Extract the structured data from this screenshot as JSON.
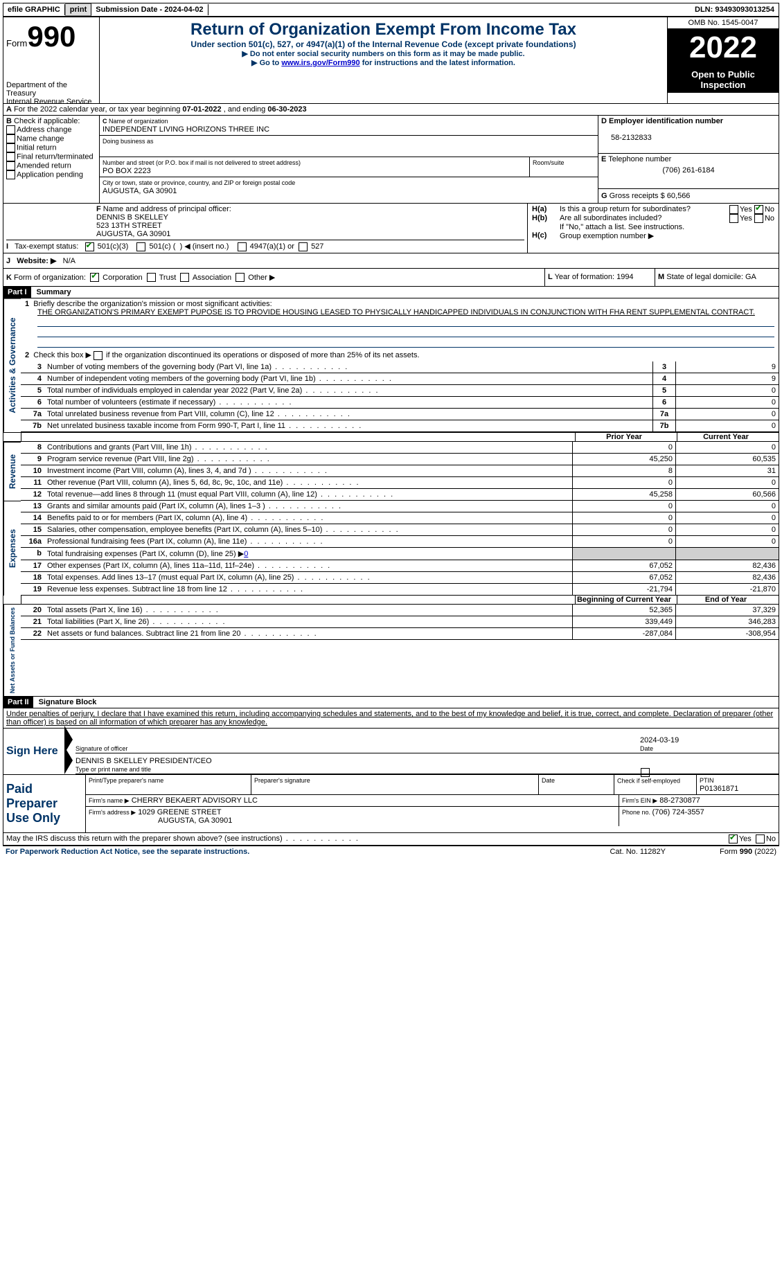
{
  "topbar": {
    "efile": "efile GRAPHIC",
    "print": "print",
    "sub_label": "Submission Date - ",
    "sub_date": "2024-04-02",
    "dln_label": "DLN: ",
    "dln": "93493093013254"
  },
  "header": {
    "form_word": "Form",
    "form_num": "990",
    "dept": "Department of the Treasury",
    "irs": "Internal Revenue Service",
    "title": "Return of Organization Exempt From Income Tax",
    "subtitle": "Under section 501(c), 527, or 4947(a)(1) of the Internal Revenue Code (except private foundations)",
    "instr1_pre": "▶ Do not enter social security numbers on this form as it may be made public.",
    "instr2_pre": "▶ Go to ",
    "instr2_link": "www.irs.gov/Form990",
    "instr2_post": " for instructions and the latest information.",
    "omb": "OMB No. 1545-0047",
    "year": "2022",
    "inspect": "Open to Public Inspection"
  },
  "period": {
    "line_a_pre": "For the 2022 calendar year, or tax year beginning ",
    "begin": "07-01-2022",
    "mid": " , and ending ",
    "end": "06-30-2023"
  },
  "boxB": {
    "label": "Check if applicable:",
    "items": [
      "Address change",
      "Name change",
      "Initial return",
      "Final return/terminated",
      "Amended return",
      "Application pending"
    ]
  },
  "boxC": {
    "name_label": "Name of organization",
    "name": "INDEPENDENT LIVING HORIZONS THREE INC",
    "dba_label": "Doing business as",
    "addr_label": "Number and street (or P.O. box if mail is not delivered to street address)",
    "room_label": "Room/suite",
    "addr": "PO BOX 2223",
    "city_label": "City or town, state or province, country, and ZIP or foreign postal code",
    "city": "AUGUSTA, GA  30901"
  },
  "boxD": {
    "label": "Employer identification number",
    "val": "58-2132833"
  },
  "boxE": {
    "label": "Telephone number",
    "val": "(706) 261-6184"
  },
  "boxG": {
    "label": "Gross receipts $",
    "val": "60,566"
  },
  "boxF": {
    "label": "Name and address of principal officer:",
    "name": "DENNIS B SKELLEY",
    "addr1": "523 13TH STREET",
    "addr2": "AUGUSTA, GA  30901"
  },
  "boxH": {
    "a": "Is this a group return for subordinates?",
    "b": "Are all subordinates included?",
    "note": "If \"No,\" attach a list. See instructions.",
    "c_label": "Group exemption number ▶"
  },
  "taxexempt": {
    "label": "Tax-exempt status:",
    "c3": "501(c)(3)",
    "c_other_pre": "501(c) (",
    "c_other_post": ") ◀ (insert no.)",
    "a1": "4947(a)(1) or",
    "s527": "527"
  },
  "website": {
    "label": "Website: ▶",
    "val": "N/A"
  },
  "boxK": {
    "label": "Form of organization:",
    "items": [
      "Corporation",
      "Trust",
      "Association",
      "Other ▶"
    ]
  },
  "boxL": {
    "label": "Year of formation: ",
    "val": "1994"
  },
  "boxM": {
    "label": "State of legal domicile: ",
    "val": "GA"
  },
  "part1": {
    "header": "Part I",
    "title": "Summary",
    "sections": {
      "gov": "Activities & Governance",
      "rev": "Revenue",
      "exp": "Expenses",
      "net": "Net Assets or Fund Balances"
    },
    "mission_label": "Briefly describe the organization's mission or most significant activities:",
    "mission": "THE ORGANIZATION'S PRIMARY EXEMPT PUPOSE IS TO PROVIDE HOUSING LEASED TO PHYSICALLY HANDICAPPED INDIVIDUALS IN CONJUNCTION WITH FHA RENT SUPPLEMENTAL CONTRACT.",
    "line2": "Check this box ▶",
    "line2_post": "if the organization discontinued its operations or disposed of more than 25% of its net assets.",
    "govlines": [
      {
        "n": "3",
        "txt": "Number of voting members of the governing body (Part VI, line 1a)",
        "val": "9"
      },
      {
        "n": "4",
        "txt": "Number of independent voting members of the governing body (Part VI, line 1b)",
        "val": "9"
      },
      {
        "n": "5",
        "txt": "Total number of individuals employed in calendar year 2022 (Part V, line 2a)",
        "val": "0"
      },
      {
        "n": "6",
        "txt": "Total number of volunteers (estimate if necessary)",
        "val": "0"
      },
      {
        "n": "7a",
        "txt": "Total unrelated business revenue from Part VIII, column (C), line 12",
        "val": "0"
      },
      {
        "n": "7b",
        "txt": "Net unrelated business taxable income from Form 990-T, Part I, line 11",
        "val": "0"
      }
    ],
    "colhdr_prior": "Prior Year",
    "colhdr_curr": "Current Year",
    "revlines": [
      {
        "n": "8",
        "txt": "Contributions and grants (Part VIII, line 1h)",
        "prior": "0",
        "curr": "0"
      },
      {
        "n": "9",
        "txt": "Program service revenue (Part VIII, line 2g)",
        "prior": "45,250",
        "curr": "60,535"
      },
      {
        "n": "10",
        "txt": "Investment income (Part VIII, column (A), lines 3, 4, and 7d )",
        "prior": "8",
        "curr": "31"
      },
      {
        "n": "11",
        "txt": "Other revenue (Part VIII, column (A), lines 5, 6d, 8c, 9c, 10c, and 11e)",
        "prior": "0",
        "curr": "0"
      },
      {
        "n": "12",
        "txt": "Total revenue—add lines 8 through 11 (must equal Part VIII, column (A), line 12)",
        "prior": "45,258",
        "curr": "60,566"
      }
    ],
    "explines": [
      {
        "n": "13",
        "txt": "Grants and similar amounts paid (Part IX, column (A), lines 1–3 )",
        "prior": "0",
        "curr": "0"
      },
      {
        "n": "14",
        "txt": "Benefits paid to or for members (Part IX, column (A), line 4)",
        "prior": "0",
        "curr": "0"
      },
      {
        "n": "15",
        "txt": "Salaries, other compensation, employee benefits (Part IX, column (A), lines 5–10)",
        "prior": "0",
        "curr": "0"
      },
      {
        "n": "16a",
        "txt": "Professional fundraising fees (Part IX, column (A), line 11e)",
        "prior": "0",
        "curr": "0"
      },
      {
        "n": "b",
        "txt_pre": "Total fundraising expenses (Part IX, column (D), line 25) ▶",
        "txt_val": "0",
        "prior": "",
        "curr": "",
        "gray": true
      },
      {
        "n": "17",
        "txt": "Other expenses (Part IX, column (A), lines 11a–11d, 11f–24e)",
        "prior": "67,052",
        "curr": "82,436"
      },
      {
        "n": "18",
        "txt": "Total expenses. Add lines 13–17 (must equal Part IX, column (A), line 25)",
        "prior": "67,052",
        "curr": "82,436"
      },
      {
        "n": "19",
        "txt": "Revenue less expenses. Subtract line 18 from line 12",
        "prior": "-21,794",
        "curr": "-21,870"
      }
    ],
    "colhdr_begin": "Beginning of Current Year",
    "colhdr_end": "End of Year",
    "netlines": [
      {
        "n": "20",
        "txt": "Total assets (Part X, line 16)",
        "prior": "52,365",
        "curr": "37,329"
      },
      {
        "n": "21",
        "txt": "Total liabilities (Part X, line 26)",
        "prior": "339,449",
        "curr": "346,283"
      },
      {
        "n": "22",
        "txt": "Net assets or fund balances. Subtract line 21 from line 20",
        "prior": "-287,084",
        "curr": "-308,954"
      }
    ]
  },
  "part2": {
    "header": "Part II",
    "title": "Signature Block",
    "penalty": "Under penalties of perjury, I declare that I have examined this return, including accompanying schedules and statements, and to the best of my knowledge and belief, it is true, correct, and complete. Declaration of preparer (other than officer) is based on all information of which preparer has any knowledge.",
    "sign_here": "Sign Here",
    "sig_officer": "Signature of officer",
    "sig_date_val": "2024-03-19",
    "date": "Date",
    "officer_name": "DENNIS B SKELLEY PRESIDENT/CEO",
    "type_print": "Type or print name and title",
    "paid": "Paid Preparer Use Only",
    "prep_name_label": "Print/Type preparer's name",
    "prep_sig_label": "Preparer's signature",
    "selfemp": "Check          if self-employed",
    "ptin_label": "PTIN",
    "ptin": "P01361871",
    "firm_name_label": "Firm's name    ▶",
    "firm_name": "CHERRY BEKAERT ADVISORY LLC",
    "firm_ein_label": "Firm's EIN ▶",
    "firm_ein": "88-2730877",
    "firm_addr_label": "Firm's address ▶",
    "firm_addr1": "1029 GREENE STREET",
    "firm_addr2": "AUGUSTA, GA  30901",
    "phone_label": "Phone no. ",
    "phone": "(706) 724-3557",
    "discuss": "May the IRS discuss this return with the preparer shown above? (see instructions)",
    "yes": "Yes",
    "no": "No"
  },
  "footer": {
    "left": "For Paperwork Reduction Act Notice, see the separate instructions.",
    "cat": "Cat. No. 11282Y",
    "right": "Form 990 (2022)"
  },
  "letters": {
    "A": "A",
    "B": "B",
    "C": "C",
    "D": "D",
    "E": "E",
    "F": "F",
    "G": "G",
    "H": "H",
    "I": "I",
    "J": "J",
    "K": "K",
    "L": "L",
    "M": "M",
    "Ha": "H(a)",
    "Hb": "H(b)",
    "Hc": "H(c)"
  }
}
